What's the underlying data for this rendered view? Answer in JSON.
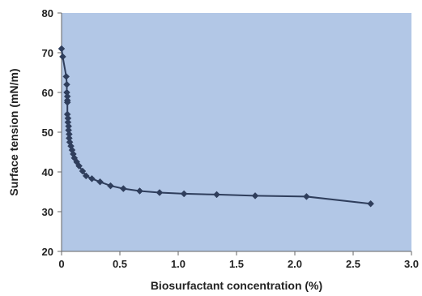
{
  "chart_data": {
    "type": "scatter",
    "title": "",
    "xlabel": "Biosurfactant concentration (%)",
    "ylabel": "Surface tension (mN/m)",
    "xlim": [
      0,
      3.0
    ],
    "ylim": [
      20,
      80
    ],
    "x_ticks": [
      "0",
      "0.5",
      "1.0",
      "1.5",
      "2.0",
      "2.5",
      "3.0"
    ],
    "y_ticks": [
      "20",
      "30",
      "40",
      "50",
      "60",
      "70",
      "80"
    ],
    "grid": false,
    "legend": "none",
    "plot_background": "#b2c7e6",
    "series_color": "#2f3e5c",
    "series": [
      {
        "x": [
          0.0,
          0.01,
          0.04,
          0.045,
          0.045,
          0.05,
          0.05,
          0.05,
          0.05,
          0.055,
          0.055,
          0.06,
          0.06,
          0.065,
          0.065,
          0.07,
          0.08,
          0.09,
          0.1,
          0.11,
          0.13,
          0.15,
          0.18,
          0.21,
          0.26,
          0.33,
          0.42,
          0.53,
          0.67,
          0.84,
          1.05,
          1.33,
          1.66,
          2.1,
          2.65
        ],
        "y": [
          71,
          69,
          64,
          62,
          60,
          59,
          58,
          57.5,
          54.5,
          53.5,
          52.5,
          51.5,
          50.5,
          49.5,
          48.5,
          47.5,
          46.5,
          45.5,
          44.5,
          43.5,
          42.5,
          41.5,
          40.2,
          39.0,
          38.3,
          37.5,
          36.5,
          35.8,
          35.2,
          34.8,
          34.5,
          34.3,
          34.0,
          33.8,
          32.0
        ]
      }
    ]
  }
}
